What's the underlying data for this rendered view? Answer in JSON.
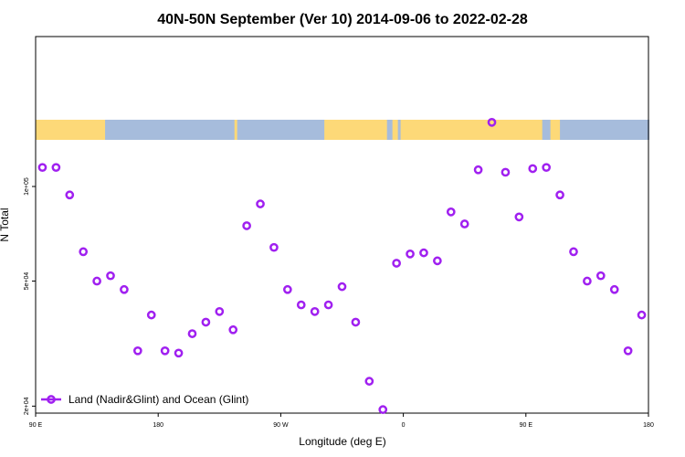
{
  "chart_data": {
    "type": "scatter",
    "title": "40N-50N September (Ver 10)   2014-09-06 to 2022-02-28",
    "xlabel": "Longitude (deg E)",
    "ylabel": "N Total",
    "x_tick_labels": [
      "90 E",
      "180",
      "90 W",
      "0",
      "90 E",
      "180"
    ],
    "x_tick_positions": [
      90,
      180,
      270,
      360,
      450,
      540
    ],
    "xlim": [
      90,
      540
    ],
    "y_scale": "log",
    "ylim": [
      19000,
      300000
    ],
    "y_ticks": [
      20000,
      50000,
      100000
    ],
    "y_tick_labels": [
      "2e+04",
      "5e+04",
      "1e+05"
    ],
    "legend": {
      "position": "bottom-left",
      "entries": [
        {
          "label": "Land (Nadir&Glint) and Ocean (Glint)",
          "color": "#a020f0"
        }
      ]
    },
    "series": [
      {
        "label": "Land (Nadir&Glint) and Ocean (Glint)",
        "color": "#a020f0",
        "x": [
          95,
          105,
          115,
          125,
          135,
          145,
          155,
          165,
          175,
          185,
          195,
          205,
          215,
          225,
          235,
          245,
          255,
          265,
          275,
          285,
          295,
          305,
          315,
          325,
          335,
          345,
          355,
          365,
          375,
          385,
          395,
          405,
          415,
          425,
          435,
          445,
          455,
          465,
          475,
          485,
          495,
          505,
          515,
          525,
          535
        ],
        "y": [
          115000,
          115000,
          94000,
          62000,
          50000,
          52000,
          47000,
          30000,
          39000,
          30000,
          29500,
          34000,
          37000,
          40000,
          35000,
          75000,
          88000,
          64000,
          47000,
          42000,
          40000,
          42000,
          48000,
          37000,
          24000,
          19500,
          57000,
          61000,
          61500,
          58000,
          83000,
          76000,
          113000,
          160000,
          111000,
          80000,
          114000,
          115000,
          94000,
          62000,
          50000,
          52000,
          47000,
          30000,
          39000
        ]
      }
    ],
    "grid": false,
    "background_band": {
      "y_range": [
        100000,
        120000
      ],
      "land_color": "#fdd978",
      "ocean_color": "#a6bcdc"
    }
  }
}
